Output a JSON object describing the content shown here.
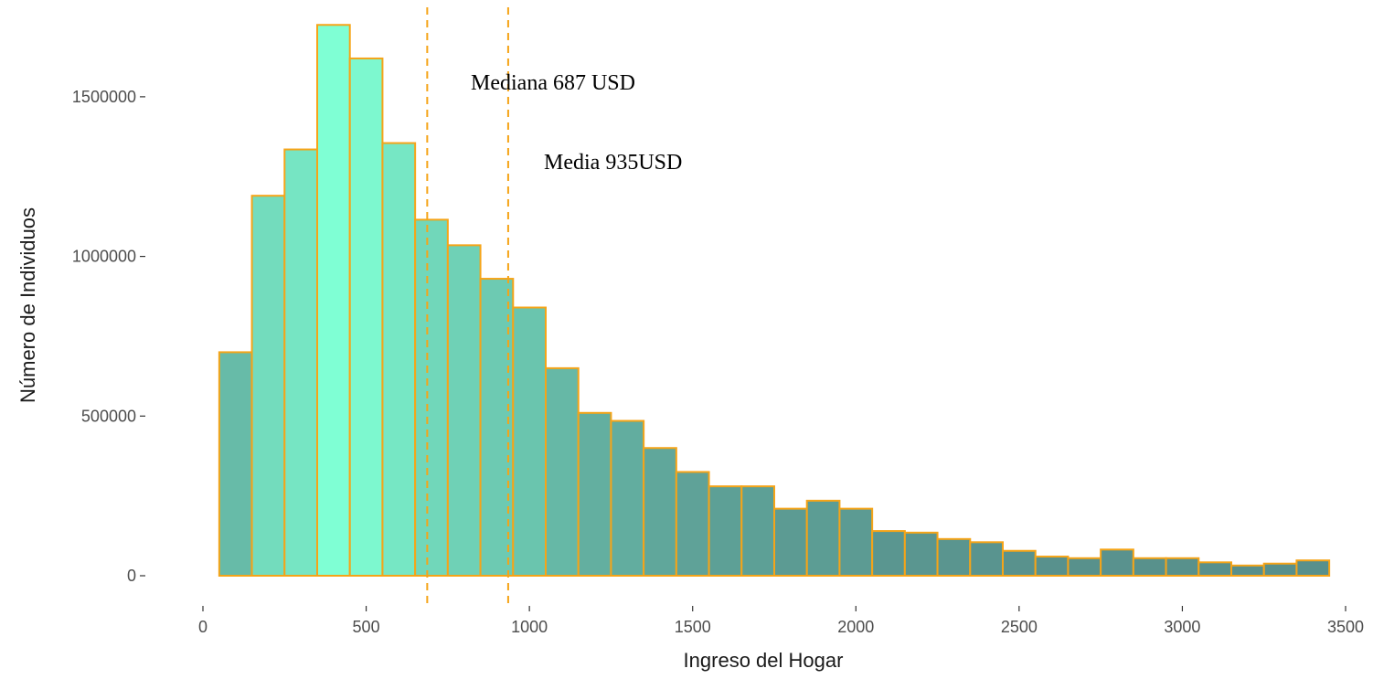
{
  "chart_data": {
    "type": "bar",
    "subtype": "histogram",
    "title": "",
    "xlabel": "Ingreso del Hogar",
    "ylabel": "Número de Individuos",
    "xlim": [
      0,
      3500
    ],
    "ylim": [
      0,
      1700000
    ],
    "x_ticks": [
      0,
      500,
      1000,
      1500,
      2000,
      2500,
      3000,
      3500
    ],
    "y_ticks": [
      0,
      500000,
      1000000,
      1500000
    ],
    "x_tick_labels": [
      "0",
      "500",
      "1000",
      "1500",
      "2000",
      "2500",
      "3000",
      "3500"
    ],
    "y_tick_labels": [
      "0",
      "500000",
      "1000000",
      "1500000"
    ],
    "bin_width": 100,
    "bins": [
      {
        "x0": 50,
        "x1": 150,
        "count": 700000
      },
      {
        "x0": 150,
        "x1": 250,
        "count": 1190000
      },
      {
        "x0": 250,
        "x1": 350,
        "count": 1335000
      },
      {
        "x0": 350,
        "x1": 450,
        "count": 1725000
      },
      {
        "x0": 450,
        "x1": 550,
        "count": 1620000
      },
      {
        "x0": 550,
        "x1": 650,
        "count": 1355000
      },
      {
        "x0": 650,
        "x1": 750,
        "count": 1115000
      },
      {
        "x0": 750,
        "x1": 850,
        "count": 1035000
      },
      {
        "x0": 850,
        "x1": 950,
        "count": 930000
      },
      {
        "x0": 950,
        "x1": 1050,
        "count": 840000
      },
      {
        "x0": 1050,
        "x1": 1150,
        "count": 650000
      },
      {
        "x0": 1150,
        "x1": 1250,
        "count": 510000
      },
      {
        "x0": 1250,
        "x1": 1350,
        "count": 485000
      },
      {
        "x0": 1350,
        "x1": 1450,
        "count": 400000
      },
      {
        "x0": 1450,
        "x1": 1550,
        "count": 325000
      },
      {
        "x0": 1550,
        "x1": 1650,
        "count": 280000
      },
      {
        "x0": 1650,
        "x1": 1750,
        "count": 280000
      },
      {
        "x0": 1750,
        "x1": 1850,
        "count": 210000
      },
      {
        "x0": 1850,
        "x1": 1950,
        "count": 235000
      },
      {
        "x0": 1950,
        "x1": 2050,
        "count": 210000
      },
      {
        "x0": 2050,
        "x1": 2150,
        "count": 140000
      },
      {
        "x0": 2150,
        "x1": 2250,
        "count": 135000
      },
      {
        "x0": 2250,
        "x1": 2350,
        "count": 115000
      },
      {
        "x0": 2350,
        "x1": 2450,
        "count": 105000
      },
      {
        "x0": 2450,
        "x1": 2550,
        "count": 78000
      },
      {
        "x0": 2550,
        "x1": 2650,
        "count": 60000
      },
      {
        "x0": 2650,
        "x1": 2750,
        "count": 55000
      },
      {
        "x0": 2750,
        "x1": 2850,
        "count": 82000
      },
      {
        "x0": 2850,
        "x1": 2950,
        "count": 55000
      },
      {
        "x0": 2950,
        "x1": 3050,
        "count": 55000
      },
      {
        "x0": 3050,
        "x1": 3150,
        "count": 42000
      },
      {
        "x0": 3150,
        "x1": 3250,
        "count": 32000
      },
      {
        "x0": 3250,
        "x1": 3350,
        "count": 38000
      },
      {
        "x0": 3350,
        "x1": 3450,
        "count": 48000
      }
    ],
    "reference_lines": [
      {
        "name": "median",
        "x": 687,
        "label": "Mediana 687 USD"
      },
      {
        "name": "mean",
        "x": 935,
        "label": "Media 935USD"
      }
    ],
    "fill_scale": {
      "low": "#578d8a",
      "high": "#7fffd4"
    },
    "bar_outline_color": "#f5a418",
    "reference_line_color": "#f5a418",
    "grid": false,
    "legend": "none"
  }
}
